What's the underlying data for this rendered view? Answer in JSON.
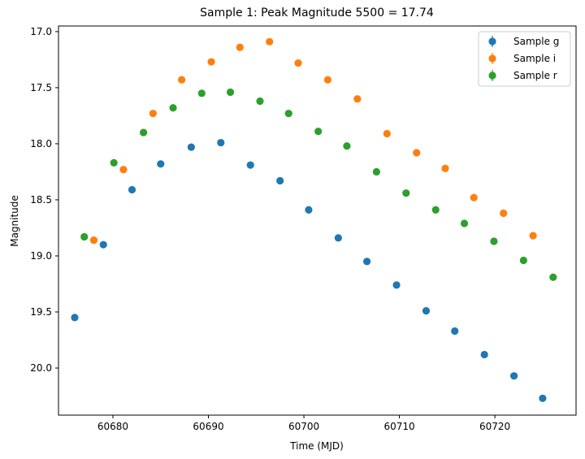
{
  "chart_data": {
    "type": "scatter",
    "title": "Sample 1: Peak Magnitude 5500 = 17.74",
    "xlabel": "Time (MJD)",
    "ylabel": "Magnitude",
    "xlim": [
      60674.3,
      60728.5
    ],
    "ylim": [
      20.42,
      16.95
    ],
    "y_inverted": true,
    "xticks": [
      60680,
      60690,
      60700,
      60710,
      60720
    ],
    "yticks": [
      17.0,
      17.5,
      18.0,
      18.5,
      19.0,
      19.5,
      20.0
    ],
    "xtick_labels": [
      "60680",
      "60690",
      "60700",
      "60710",
      "60720"
    ],
    "ytick_labels": [
      "17.0",
      "17.5",
      "18.0",
      "18.5",
      "19.0",
      "19.5",
      "20.0"
    ],
    "grid": false,
    "legend_position": "top-right",
    "series": [
      {
        "name": "Sample g",
        "color": "#1f77b4",
        "x": [
          60676,
          60679,
          60682,
          60685,
          60688.2,
          60691.3,
          60694.4,
          60697.5,
          60700.5,
          60703.6,
          60706.6,
          60709.7,
          60712.8,
          60715.8,
          60718.9,
          60722,
          60725
        ],
        "y": [
          19.55,
          18.9,
          18.41,
          18.18,
          18.03,
          17.99,
          18.19,
          18.33,
          18.59,
          18.84,
          19.05,
          19.26,
          19.49,
          19.67,
          19.88,
          20.07,
          20.27
        ]
      },
      {
        "name": "Sample i",
        "color": "#ff7f0e",
        "x": [
          60678,
          60681.1,
          60684.2,
          60687.2,
          60690.3,
          60693.3,
          60696.4,
          60699.4,
          60702.5,
          60705.6,
          60708.7,
          60711.8,
          60714.8,
          60717.8,
          60720.9,
          60724
        ],
        "y": [
          18.86,
          18.23,
          17.73,
          17.43,
          17.27,
          17.14,
          17.09,
          17.28,
          17.43,
          17.6,
          17.91,
          18.08,
          18.22,
          18.48,
          18.62,
          18.82
        ]
      },
      {
        "name": "Sample r",
        "color": "#2ca02c",
        "x": [
          60677,
          60680.1,
          60683.2,
          60686.3,
          60689.3,
          60692.3,
          60695.4,
          60698.4,
          60701.5,
          60704.5,
          60707.6,
          60710.7,
          60713.8,
          60716.8,
          60719.9,
          60723,
          60726.1
        ],
        "y": [
          18.83,
          18.17,
          17.9,
          17.68,
          17.55,
          17.54,
          17.62,
          17.73,
          17.89,
          18.02,
          18.25,
          18.44,
          18.59,
          18.71,
          18.87,
          19.04,
          19.19
        ]
      }
    ]
  }
}
